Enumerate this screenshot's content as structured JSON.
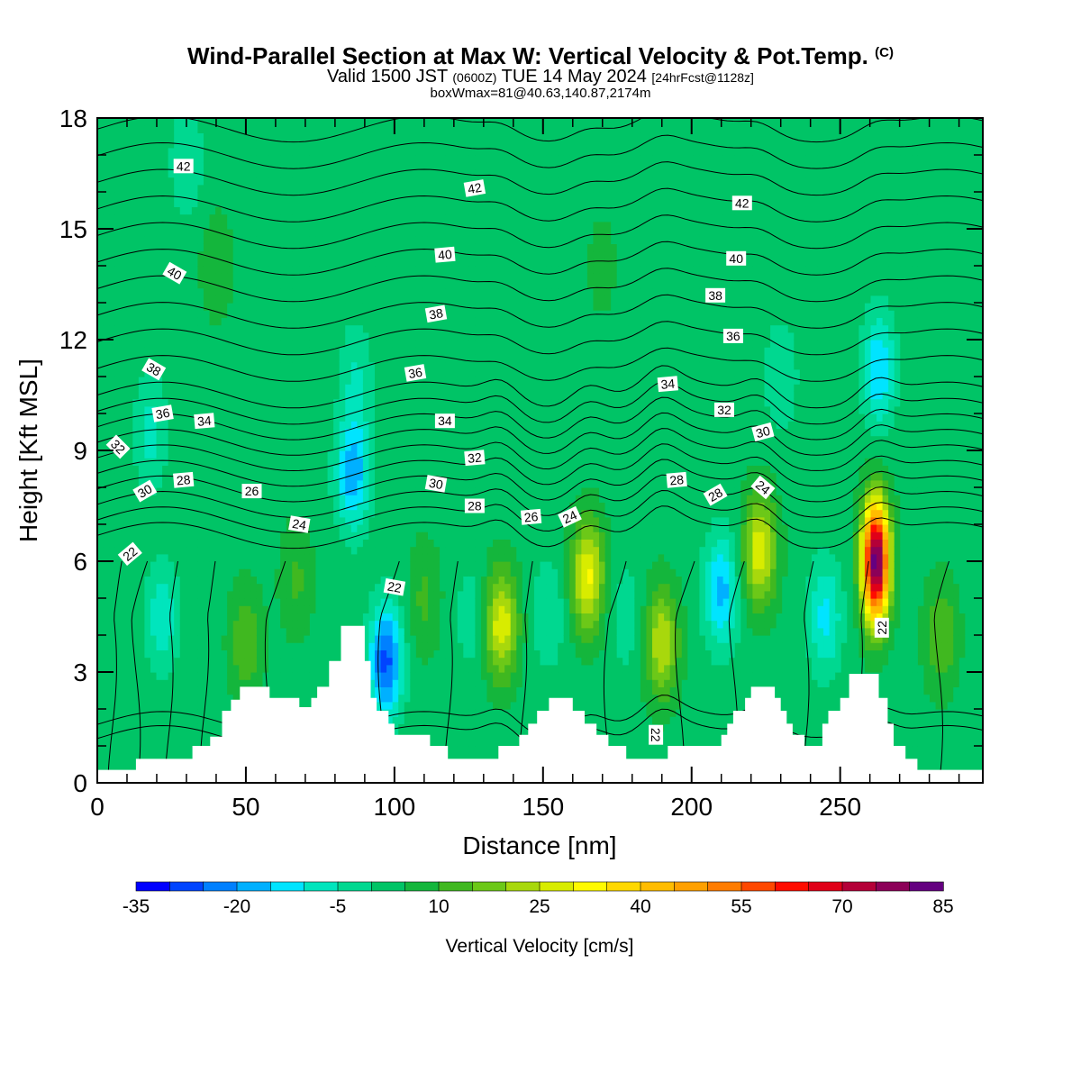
{
  "title": {
    "line1": "Wind-Parallel Section at Max W: Vertical Velocity & Pot.Temp.",
    "copyright": "(C)",
    "line2_main": "Valid 1500 JST",
    "line2_zulu": "(0600Z)",
    "line2_date": "TUE 14 May 2024",
    "line2_fcst": "[24hrFcst@1128z]",
    "line3": "boxWmax=81@40.63,140.87,2174m"
  },
  "chart_data": {
    "type": "heatmap",
    "xlabel": "Distance [nm]",
    "ylabel": "Height [Kft MSL]",
    "xlim": [
      0,
      298
    ],
    "ylim": [
      0,
      18
    ],
    "x_ticks": [
      0,
      50,
      100,
      150,
      200,
      250
    ],
    "y_ticks": [
      0,
      3,
      6,
      9,
      12,
      15,
      18
    ],
    "colorbar": {
      "label": "Vertical Velocity [cm/s]",
      "min": -35,
      "max": 85,
      "step": 5,
      "tick_labels": [
        "-35",
        "-20",
        "-5",
        "10",
        "25",
        "40",
        "55",
        "70",
        "85"
      ],
      "colors": [
        "#0000ff",
        "#0044ff",
        "#0080ff",
        "#00b0ff",
        "#00e4ff",
        "#00e5bd",
        "#00d890",
        "#00c466",
        "#14b63c",
        "#40b820",
        "#6cc818",
        "#a8d80c",
        "#d8ec00",
        "#fffa00",
        "#ffd800",
        "#ffbc00",
        "#ffa000",
        "#ff7c00",
        "#ff4800",
        "#ff0c00",
        "#e00018",
        "#b40038",
        "#8c0058",
        "#640080"
      ]
    },
    "terrain": [
      [
        0,
        0.35
      ],
      [
        13,
        0.35
      ],
      [
        13,
        0.65
      ],
      [
        32,
        0.65
      ],
      [
        32,
        1.0
      ],
      [
        38,
        1.0
      ],
      [
        38,
        1.25
      ],
      [
        42,
        1.25
      ],
      [
        42,
        1.95
      ],
      [
        45,
        1.95
      ],
      [
        45,
        2.25
      ],
      [
        48,
        2.25
      ],
      [
        48,
        2.6
      ],
      [
        58,
        2.6
      ],
      [
        58,
        2.3
      ],
      [
        68,
        2.3
      ],
      [
        68,
        2.05
      ],
      [
        72,
        2.05
      ],
      [
        72,
        2.3
      ],
      [
        74,
        2.3
      ],
      [
        74,
        2.6
      ],
      [
        78,
        2.6
      ],
      [
        78,
        3.3
      ],
      [
        82,
        3.3
      ],
      [
        82,
        4.25
      ],
      [
        90,
        4.25
      ],
      [
        90,
        3.3
      ],
      [
        92,
        3.3
      ],
      [
        92,
        2.3
      ],
      [
        94,
        2.3
      ],
      [
        94,
        1.95
      ],
      [
        98,
        1.95
      ],
      [
        98,
        1.6
      ],
      [
        100,
        1.6
      ],
      [
        100,
        1.3
      ],
      [
        112,
        1.3
      ],
      [
        112,
        1.0
      ],
      [
        118,
        1.0
      ],
      [
        118,
        0.65
      ],
      [
        135,
        0.65
      ],
      [
        135,
        1.0
      ],
      [
        142,
        1.0
      ],
      [
        142,
        1.3
      ],
      [
        145,
        1.3
      ],
      [
        145,
        1.6
      ],
      [
        148,
        1.6
      ],
      [
        148,
        1.95
      ],
      [
        152,
        1.95
      ],
      [
        152,
        2.3
      ],
      [
        160,
        2.3
      ],
      [
        160,
        1.95
      ],
      [
        164,
        1.95
      ],
      [
        164,
        1.6
      ],
      [
        168,
        1.6
      ],
      [
        168,
        1.3
      ],
      [
        172,
        1.3
      ],
      [
        172,
        1.0
      ],
      [
        178,
        1.0
      ],
      [
        178,
        0.65
      ],
      [
        192,
        0.65
      ],
      [
        192,
        1.0
      ],
      [
        210,
        1.0
      ],
      [
        210,
        1.3
      ],
      [
        212,
        1.3
      ],
      [
        212,
        1.6
      ],
      [
        214,
        1.6
      ],
      [
        214,
        1.95
      ],
      [
        218,
        1.95
      ],
      [
        218,
        2.3
      ],
      [
        220,
        2.3
      ],
      [
        220,
        2.6
      ],
      [
        228,
        2.6
      ],
      [
        228,
        2.3
      ],
      [
        230,
        2.3
      ],
      [
        230,
        1.95
      ],
      [
        232,
        1.95
      ],
      [
        232,
        1.6
      ],
      [
        234,
        1.6
      ],
      [
        234,
        1.3
      ],
      [
        238,
        1.3
      ],
      [
        238,
        1.0
      ],
      [
        244,
        1.0
      ],
      [
        244,
        1.6
      ],
      [
        246,
        1.6
      ],
      [
        246,
        1.95
      ],
      [
        250,
        1.95
      ],
      [
        250,
        2.3
      ],
      [
        253,
        2.3
      ],
      [
        253,
        2.95
      ],
      [
        263,
        2.95
      ],
      [
        263,
        2.3
      ],
      [
        266,
        2.3
      ],
      [
        266,
        1.6
      ],
      [
        268,
        1.6
      ],
      [
        268,
        1.0
      ],
      [
        272,
        1.0
      ],
      [
        272,
        0.65
      ],
      [
        276,
        0.65
      ],
      [
        276,
        0.35
      ],
      [
        298,
        0.35
      ],
      [
        298,
        0
      ]
    ],
    "w_features": [
      {
        "x": 22,
        "y": 4.5,
        "w": -12
      },
      {
        "x": 18,
        "y": 9.5,
        "w": -10
      },
      {
        "x": 30,
        "y": 16.8,
        "w": -8
      },
      {
        "x": 50,
        "y": 3.8,
        "w": 12
      },
      {
        "x": 67,
        "y": 5.5,
        "w": 8
      },
      {
        "x": 86,
        "y": 8.4,
        "w": -22
      },
      {
        "x": 87,
        "y": 11.0,
        "w": -8
      },
      {
        "x": 97,
        "y": 3.3,
        "w": -30
      },
      {
        "x": 110,
        "y": 5.0,
        "w": 8
      },
      {
        "x": 126,
        "y": 4.5,
        "w": -6
      },
      {
        "x": 136,
        "y": 4.3,
        "w": 26
      },
      {
        "x": 152,
        "y": 4.6,
        "w": -8
      },
      {
        "x": 165,
        "y": 5.6,
        "w": 28
      },
      {
        "x": 178,
        "y": 4.5,
        "w": -6
      },
      {
        "x": 190,
        "y": 3.8,
        "w": 22
      },
      {
        "x": 210,
        "y": 5.2,
        "w": -20
      },
      {
        "x": 223,
        "y": 6.3,
        "w": 26
      },
      {
        "x": 230,
        "y": 11.0,
        "w": -8
      },
      {
        "x": 245,
        "y": 4.5,
        "w": -15
      },
      {
        "x": 262,
        "y": 6.0,
        "w": 81
      },
      {
        "x": 263,
        "y": 11.2,
        "w": -18
      },
      {
        "x": 284,
        "y": 4.0,
        "w": 12
      },
      {
        "x": 40,
        "y": 14.0,
        "w": 6
      },
      {
        "x": 170,
        "y": 14.0,
        "w": 4
      }
    ],
    "theta_contours": {
      "interval": 1,
      "labels": [
        {
          "text": "42",
          "x": 29,
          "y": 16.7,
          "rot": 0
        },
        {
          "text": "42",
          "x": 127,
          "y": 16.1,
          "rot": -10
        },
        {
          "text": "42",
          "x": 217,
          "y": 15.7,
          "rot": 0
        },
        {
          "text": "40",
          "x": 26,
          "y": 13.8,
          "rot": 30
        },
        {
          "text": "40",
          "x": 117,
          "y": 14.3,
          "rot": -5
        },
        {
          "text": "40",
          "x": 215,
          "y": 14.2,
          "rot": 0
        },
        {
          "text": "38",
          "x": 19,
          "y": 11.2,
          "rot": 30
        },
        {
          "text": "38",
          "x": 114,
          "y": 12.7,
          "rot": -10
        },
        {
          "text": "38",
          "x": 208,
          "y": 13.2,
          "rot": 0
        },
        {
          "text": "36",
          "x": 22,
          "y": 10.0,
          "rot": -10
        },
        {
          "text": "36",
          "x": 107,
          "y": 11.1,
          "rot": -10
        },
        {
          "text": "36",
          "x": 214,
          "y": 12.1,
          "rot": 0
        },
        {
          "text": "34",
          "x": 36,
          "y": 9.8,
          "rot": -5
        },
        {
          "text": "34",
          "x": 117,
          "y": 9.8,
          "rot": 0
        },
        {
          "text": "34",
          "x": 192,
          "y": 10.8,
          "rot": -5
        },
        {
          "text": "32",
          "x": 7,
          "y": 9.1,
          "rot": 45
        },
        {
          "text": "32",
          "x": 127,
          "y": 8.8,
          "rot": -5
        },
        {
          "text": "32",
          "x": 211,
          "y": 10.1,
          "rot": 0
        },
        {
          "text": "30",
          "x": 16,
          "y": 7.9,
          "rot": -30
        },
        {
          "text": "30",
          "x": 114,
          "y": 8.1,
          "rot": 10
        },
        {
          "text": "30",
          "x": 224,
          "y": 9.5,
          "rot": -15
        },
        {
          "text": "28",
          "x": 29,
          "y": 8.2,
          "rot": -5
        },
        {
          "text": "28",
          "x": 127,
          "y": 7.5,
          "rot": 0
        },
        {
          "text": "28",
          "x": 195,
          "y": 8.2,
          "rot": -5
        },
        {
          "text": "28",
          "x": 208,
          "y": 7.8,
          "rot": -30
        },
        {
          "text": "26",
          "x": 52,
          "y": 7.9,
          "rot": 0
        },
        {
          "text": "26",
          "x": 146,
          "y": 7.2,
          "rot": -5
        },
        {
          "text": "24",
          "x": 68,
          "y": 7.0,
          "rot": 10
        },
        {
          "text": "24",
          "x": 159,
          "y": 7.2,
          "rot": -25
        },
        {
          "text": "24",
          "x": 224,
          "y": 8.0,
          "rot": 40
        },
        {
          "text": "22",
          "x": 11,
          "y": 6.2,
          "rot": -40
        },
        {
          "text": "22",
          "x": 100,
          "y": 5.3,
          "rot": 10
        },
        {
          "text": "22",
          "x": 188,
          "y": 1.3,
          "rot": 90
        },
        {
          "text": "22",
          "x": 264,
          "y": 4.2,
          "rot": -90
        }
      ]
    }
  }
}
